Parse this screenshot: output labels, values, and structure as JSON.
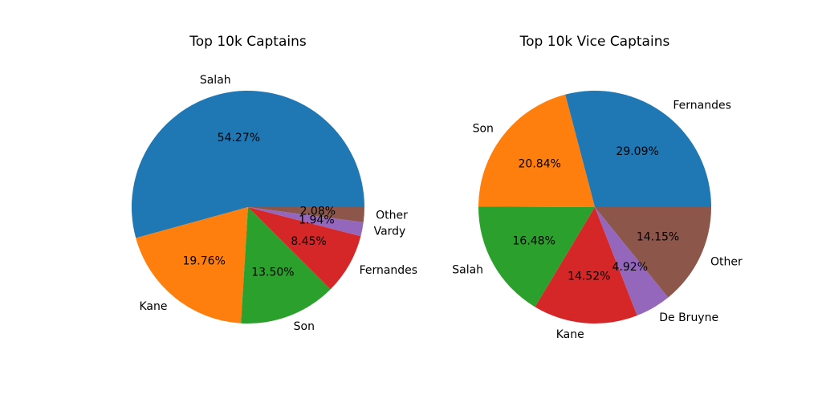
{
  "chart_data": [
    {
      "type": "pie",
      "title": "Top 10k Captains",
      "start_angle_deg": 0,
      "direction": "counterclockwise",
      "slices": [
        {
          "label": "Salah",
          "value": 54.27,
          "pct_label": "54.27%",
          "color": "#1f77b4"
        },
        {
          "label": "Kane",
          "value": 19.76,
          "pct_label": "19.76%",
          "color": "#ff7f0e"
        },
        {
          "label": "Son",
          "value": 13.5,
          "pct_label": "13.50%",
          "color": "#2ca02c"
        },
        {
          "label": "Fernandes",
          "value": 8.45,
          "pct_label": "8.45%",
          "color": "#d62728"
        },
        {
          "label": "Vardy",
          "value": 1.94,
          "pct_label": "1.94%",
          "color": "#9467bd"
        },
        {
          "label": "Other",
          "value": 2.08,
          "pct_label": "2.08%",
          "color": "#8c564b"
        }
      ]
    },
    {
      "type": "pie",
      "title": "Top 10k Vice Captains",
      "start_angle_deg": 0,
      "direction": "counterclockwise",
      "slices": [
        {
          "label": "Fernandes",
          "value": 29.09,
          "pct_label": "29.09%",
          "color": "#1f77b4"
        },
        {
          "label": "Son",
          "value": 20.84,
          "pct_label": "20.84%",
          "color": "#ff7f0e"
        },
        {
          "label": "Salah",
          "value": 16.48,
          "pct_label": "16.48%",
          "color": "#2ca02c"
        },
        {
          "label": "Kane",
          "value": 14.52,
          "pct_label": "14.52%",
          "color": "#d62728"
        },
        {
          "label": "De Bruyne",
          "value": 4.92,
          "pct_label": "4.92%",
          "color": "#9467bd"
        },
        {
          "label": "Other",
          "value": 14.15,
          "pct_label": "14.15%",
          "color": "#8c564b"
        }
      ]
    }
  ]
}
